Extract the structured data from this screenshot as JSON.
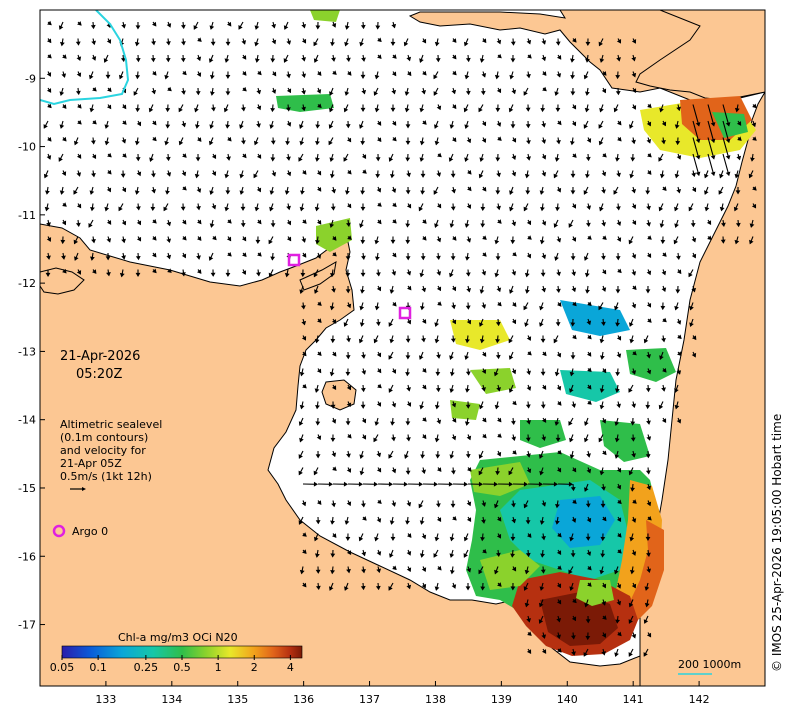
{
  "map": {
    "date": "21-Apr-2026",
    "time": "05:20Z",
    "info_lines": [
      "Altimetric sealevel",
      "(0.1m contours)",
      "and velocity for",
      "21-Apr 05Z",
      "0.5m/s (1kt 12h)"
    ],
    "argo_label": "Argo 0",
    "credit": "© IMOS 25-Apr-2026 19:05:00 Hobart time",
    "scale_label": "200  1000m",
    "lon_ticks": [
      133,
      134,
      135,
      136,
      137,
      138,
      139,
      140,
      141,
      142
    ],
    "lat_ticks": [
      -9,
      -10,
      -11,
      -12,
      -13,
      -14,
      -15,
      -16,
      -17
    ],
    "lon_range": [
      132,
      143
    ],
    "lat_range": [
      -8.0,
      -17.9
    ],
    "colors": {
      "land": "#fcc793",
      "ocean": "#ffffff",
      "argo": "#e020e0",
      "contour": "#2ad4e0"
    }
  },
  "colorbar": {
    "title": "Chl-a mg/m3 OCi N20",
    "tick_labels": [
      "0.05",
      "0.1",
      "0.25",
      "0.5",
      "1",
      "2",
      "4"
    ],
    "tick_values": [
      0.05,
      0.1,
      0.25,
      0.5,
      1,
      2,
      4
    ],
    "range": [
      0.05,
      5
    ],
    "colors": [
      "#2b1cab",
      "#0a5cd9",
      "#0aa6d8",
      "#16c7a8",
      "#2fbe4a",
      "#8bd22c",
      "#e8e82a",
      "#f2a21c",
      "#e1641a",
      "#b63010",
      "#7b1a06"
    ]
  }
}
